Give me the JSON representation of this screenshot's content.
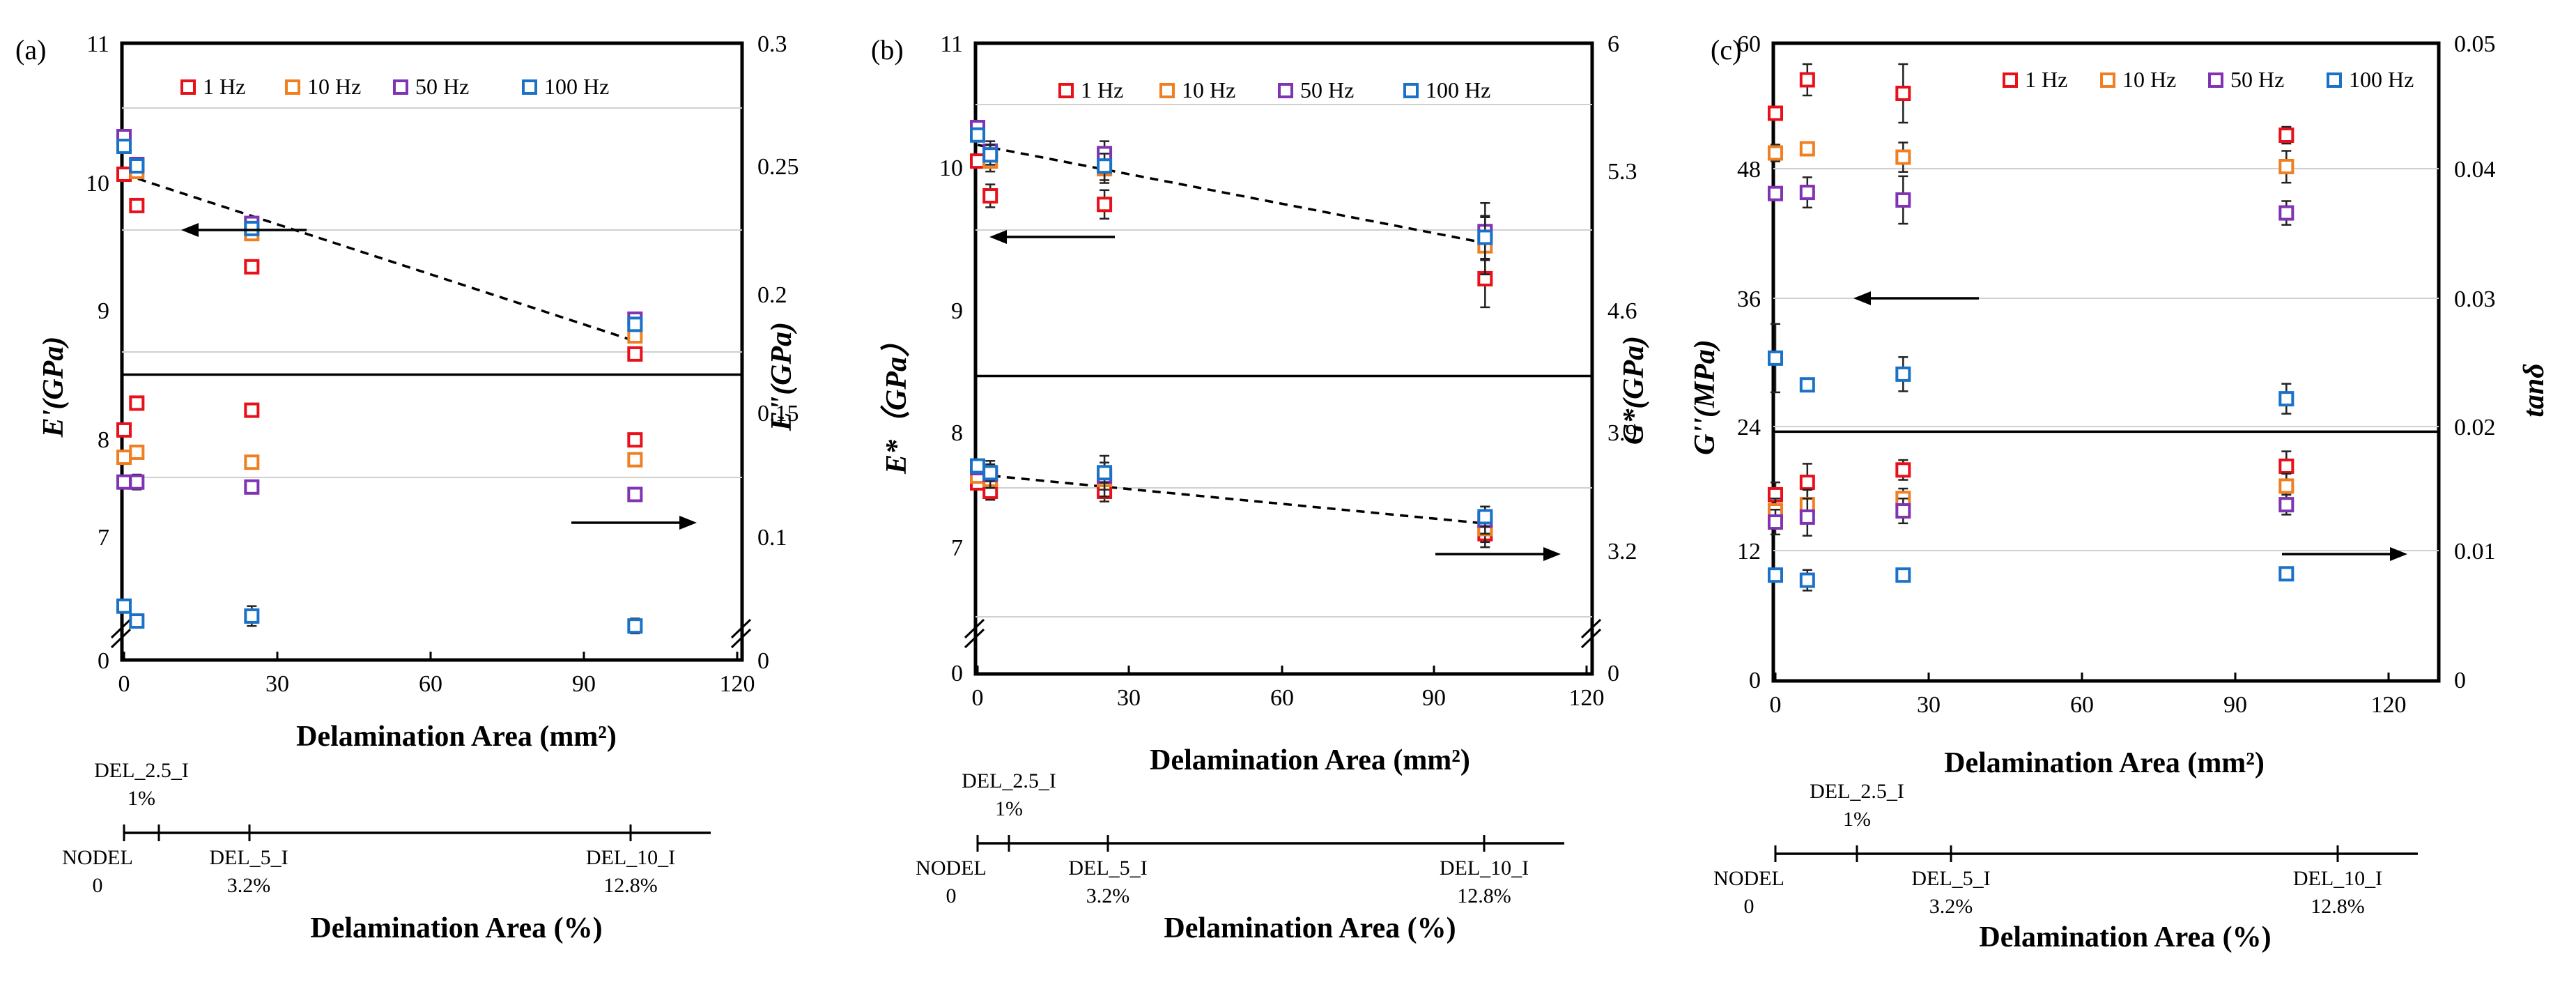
{
  "colors": {
    "1 Hz": "#e8101a",
    "10 Hz": "#f07f22",
    "50 Hz": "#8033b3",
    "100 Hz": "#1a72c8"
  },
  "legend": [
    "1 Hz",
    "10 Hz",
    "50 Hz",
    "100 Hz"
  ],
  "chart_data": [
    {
      "type": "scatter",
      "panel": "(a)",
      "xlabel": "Delamination Area (mm²)",
      "x_ticks": [
        "0",
        "30",
        "60",
        "90",
        "120"
      ],
      "xlim": [
        0,
        120
      ],
      "left_axis": {
        "label": "E'(GPa)",
        "ticks": [
          "7",
          "8",
          "9",
          "10",
          "11"
        ],
        "break_label": "0",
        "lim": [
          6.5,
          11
        ]
      },
      "right_axis": {
        "label": "E\"(GPa)",
        "ticks": [
          "0.1",
          "0.15",
          "0.2",
          "0.25",
          "0.3"
        ],
        "break_label": "0",
        "lim": [
          0.05,
          0.3
        ]
      },
      "divider": 8.5,
      "x": [
        0,
        2.5,
        25,
        100
      ],
      "series": [
        {
          "name": "1 Hz",
          "axis": "left",
          "values": [
            10.06,
            9.82,
            9.34,
            8.66
          ],
          "err": [
            0.02,
            0.03,
            0.03,
            0.04
          ]
        },
        {
          "name": "10 Hz",
          "axis": "left",
          "values": [
            10.28,
            10.08,
            9.6,
            8.8
          ],
          "err": [
            0.02,
            0.03,
            0.04,
            0.05
          ]
        },
        {
          "name": "50 Hz",
          "axis": "left",
          "values": [
            10.33,
            10.13,
            9.68,
            8.93
          ],
          "err": [
            0.02,
            0.03,
            0.04,
            0.05
          ]
        },
        {
          "name": "100 Hz",
          "axis": "left",
          "values": [
            10.26,
            10.12,
            9.64,
            8.89
          ],
          "err": [
            0.02,
            0.03,
            0.04,
            0.05
          ]
        },
        {
          "name": "1 Hz",
          "axis": "right",
          "values": [
            0.143,
            0.154,
            0.151,
            0.139
          ],
          "err": [
            0.002,
            0.002,
            0.002,
            0.002
          ]
        },
        {
          "name": "10 Hz",
          "axis": "right",
          "values": [
            0.132,
            0.134,
            0.13,
            0.131
          ],
          "err": [
            0.002,
            0.002,
            0.002,
            0.002
          ]
        },
        {
          "name": "50 Hz",
          "axis": "right",
          "values": [
            0.122,
            0.122,
            0.12,
            0.117
          ],
          "err": [
            0.002,
            0.003,
            0.002,
            0.002
          ]
        },
        {
          "name": "100 Hz",
          "axis": "right",
          "values": [
            0.072,
            0.066,
            0.068,
            0.064
          ],
          "err": [
            0.002,
            0.002,
            0.004,
            0.003
          ]
        }
      ],
      "trend_lines": [
        {
          "axis": "left",
          "from": [
            0,
            10.06
          ],
          "to": [
            100,
            8.76
          ]
        }
      ],
      "arrows": [
        {
          "direction": "left",
          "at": [
            20,
            9.5
          ]
        },
        {
          "direction": "right",
          "at": [
            100,
            7.1
          ]
        }
      ]
    },
    {
      "type": "scatter",
      "panel": "(b)",
      "xlabel": "Delamination Area (mm²)",
      "x_ticks": [
        "0",
        "30",
        "60",
        "90",
        "120"
      ],
      "xlim": [
        0,
        120
      ],
      "left_axis": {
        "label": "E*（GPa）",
        "ticks": [
          "7",
          "8",
          "9",
          "10",
          "11"
        ],
        "break_label": "0",
        "lim": [
          6.5,
          11
        ]
      },
      "right_axis": {
        "label": "G*(GPa)",
        "ticks": [
          "3.2",
          "3.9",
          "4.6",
          "5.3",
          "6"
        ],
        "break_label": "0",
        "lim": [
          2.85,
          6
        ]
      },
      "divider": 8.46,
      "x": [
        0,
        2.5,
        25,
        100
      ],
      "series": [
        {
          "name": "1 Hz",
          "axis": "left",
          "values": [
            10.05,
            9.8,
            9.74,
            9.22
          ],
          "err": [
            0.03,
            0.08,
            0.1,
            0.2
          ]
        },
        {
          "name": "10 Hz",
          "axis": "left",
          "values": [
            10.28,
            10.05,
            9.99,
            9.45
          ],
          "err": [
            0.03,
            0.08,
            0.1,
            0.2
          ]
        },
        {
          "name": "50 Hz",
          "axis": "left",
          "values": [
            10.32,
            10.13,
            10.11,
            9.55
          ],
          "err": [
            0.03,
            0.08,
            0.1,
            0.2
          ]
        },
        {
          "name": "100 Hz",
          "axis": "left",
          "values": [
            10.26,
            10.1,
            10.01,
            9.51
          ],
          "err": [
            0.03,
            0.08,
            0.1,
            0.15
          ]
        },
        {
          "name": "1 Hz",
          "axis": "right",
          "values": [
            3.6,
            3.55,
            3.55,
            3.3
          ],
          "err": [
            0.03,
            0.05,
            0.06,
            0.08
          ]
        },
        {
          "name": "10 Hz",
          "axis": "right",
          "values": [
            3.64,
            3.62,
            3.62,
            3.33
          ],
          "err": [
            0.03,
            0.05,
            0.06,
            0.08
          ]
        },
        {
          "name": "50 Hz",
          "axis": "right",
          "values": [
            3.69,
            3.65,
            3.64,
            3.38
          ],
          "err": [
            0.03,
            0.08,
            0.12,
            0.08
          ]
        },
        {
          "name": "100 Hz",
          "axis": "right",
          "values": [
            3.7,
            3.66,
            3.66,
            3.4
          ],
          "err": [
            0.03,
            0.05,
            0.06,
            0.06
          ]
        }
      ],
      "trend_lines": [
        {
          "axis": "left",
          "from": [
            0,
            10.18
          ],
          "to": [
            100,
            9.47
          ]
        },
        {
          "axis": "right",
          "from": [
            0,
            3.65
          ],
          "to": [
            100,
            3.36
          ]
        }
      ],
      "arrows": [
        {
          "direction": "left",
          "at": [
            18,
            9.5
          ]
        },
        {
          "direction": "right",
          "at": [
            100,
            6.98
          ]
        }
      ]
    },
    {
      "type": "scatter",
      "panel": "(c)",
      "xlabel": "Delamination Area (mm²)",
      "x_ticks": [
        "0",
        "30",
        "60",
        "90",
        "120"
      ],
      "xlim": [
        0,
        120
      ],
      "left_axis": {
        "label": "G''(MPa)",
        "ticks": [
          "0",
          "12",
          "24",
          "36",
          "48",
          "60"
        ],
        "lim": [
          0,
          60
        ]
      },
      "right_axis": {
        "label": "tanδ",
        "ticks": [
          "0",
          "0.01",
          "0.02",
          "0.03",
          "0.04",
          "0.05"
        ],
        "lim": [
          0,
          0.05
        ]
      },
      "divider": 23.5,
      "x": [
        0,
        6.25,
        25,
        100
      ],
      "series": [
        {
          "name": "1 Hz",
          "axis": "left",
          "values": [
            53.3,
            56.5,
            55.2,
            51.2
          ],
          "err": [
            0.6,
            1.5,
            2.8,
            0.8
          ]
        },
        {
          "name": "10 Hz",
          "axis": "left",
          "values": [
            49.5,
            49.9,
            49.1,
            48.2
          ],
          "err": [
            0.8,
            0.6,
            1.4,
            1.5
          ]
        },
        {
          "name": "50 Hz",
          "axis": "left",
          "values": [
            45.7,
            45.8,
            45.1,
            43.9
          ],
          "err": [
            0.6,
            1.4,
            2.2,
            1.1
          ]
        },
        {
          "name": "1 Hz",
          "axis": "right",
          "values": [
            0.0145,
            0.0155,
            0.0165,
            0.0168
          ],
          "err": [
            0.001,
            0.0015,
            0.0008,
            0.0012
          ]
        },
        {
          "name": "10 Hz",
          "axis": "right",
          "values": [
            0.0132,
            0.0137,
            0.0142,
            0.0152
          ],
          "err": [
            0.001,
            0.0012,
            0.0008,
            0.001
          ]
        },
        {
          "name": "50 Hz",
          "axis": "right",
          "values": [
            0.0123,
            0.0127,
            0.0132,
            0.0137
          ],
          "err": [
            0.001,
            0.0015,
            0.001,
            0.0008
          ]
        },
        {
          "name": "100 Hz",
          "axis": "left",
          "values": [
            30.4,
            27.9,
            28.9,
            26.6
          ],
          "err": [
            3.2,
            0.6,
            1.6,
            1.4
          ]
        },
        {
          "name": "100 Hz",
          "axis": "right",
          "values": [
            0.0081,
            0.0077,
            0.0081,
            0.0082
          ],
          "err": [
            0.0005,
            0.0008,
            0.0005,
            0.0005
          ]
        }
      ],
      "trend_lines": [],
      "arrows": [
        {
          "direction": "left",
          "at": [
            23,
            36
          ]
        },
        {
          "direction": "right",
          "at": [
            100,
            0.0099
          ]
        }
      ]
    }
  ],
  "secondary_axis": {
    "label": "Delamination Area (%)",
    "stages": [
      {
        "name": "NODEL",
        "value": "0"
      },
      {
        "name": "DEL_2.5_I",
        "value": "1%"
      },
      {
        "name": "DEL_5_I",
        "value": "3.2%"
      },
      {
        "name": "DEL_10_I",
        "value": "12.8%"
      }
    ]
  }
}
